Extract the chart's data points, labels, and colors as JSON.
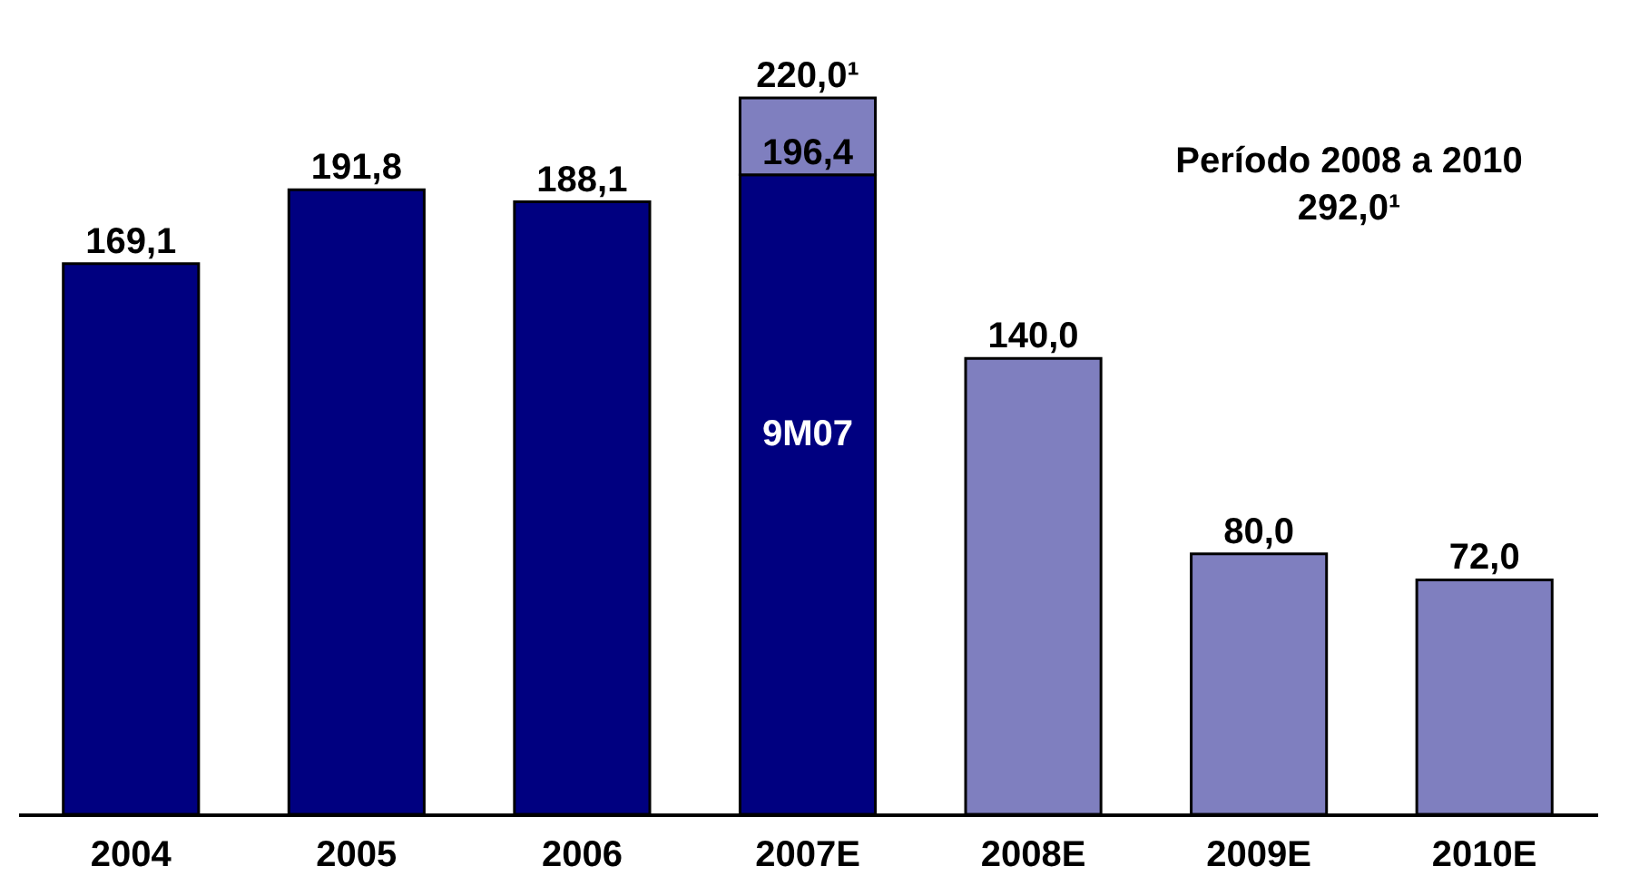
{
  "chart_data": {
    "type": "bar",
    "stacked": true,
    "categories": [
      "2004",
      "2005",
      "2006",
      "2007E",
      "2008E",
      "2009E",
      "2010E"
    ],
    "series": [
      {
        "color": "#000080",
        "values": [
          169.1,
          191.8,
          188.1,
          196.4,
          null,
          null,
          null
        ],
        "value_labels": [
          "169,1",
          "191,8",
          "188,1",
          "196,4",
          null,
          null,
          null
        ]
      },
      {
        "color": "#7f7fbf",
        "values": [
          null,
          null,
          null,
          23.6,
          140.0,
          80.0,
          72.0
        ],
        "value_labels": [
          null,
          null,
          null,
          null,
          "140,0",
          "80,0",
          "72,0"
        ]
      }
    ],
    "totals": [
      null,
      null,
      null,
      "220,0¹",
      null,
      null,
      null
    ],
    "annotations": [
      "9M07",
      "Período 2008 a 2010\n292,0¹"
    ],
    "tick_labels": "x"
  }
}
